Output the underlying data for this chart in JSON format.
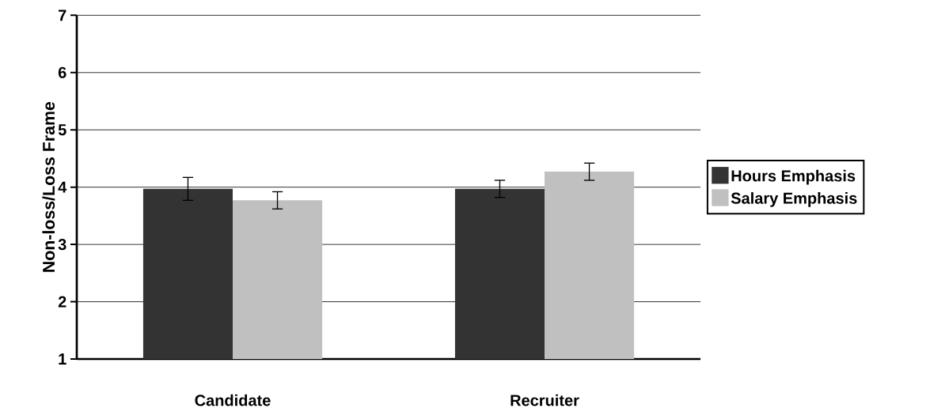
{
  "chart_data": {
    "type": "bar",
    "ylabel": "Non-loss/Loss Frame",
    "categories": [
      "Candidate",
      "Recruiter"
    ],
    "series": [
      {
        "name": "Hours Emphasis",
        "color": "#333333",
        "values": [
          3.97,
          3.97
        ],
        "errors": [
          0.2,
          0.15
        ]
      },
      {
        "name": "Salary Emphasis",
        "color": "#c0c0c0",
        "values": [
          3.77,
          4.27
        ],
        "errors": [
          0.15,
          0.15
        ]
      }
    ],
    "ylim": [
      1,
      7
    ],
    "yticks": [
      1,
      2,
      3,
      4,
      5,
      6,
      7
    ],
    "grid": "y",
    "legend": "right"
  }
}
